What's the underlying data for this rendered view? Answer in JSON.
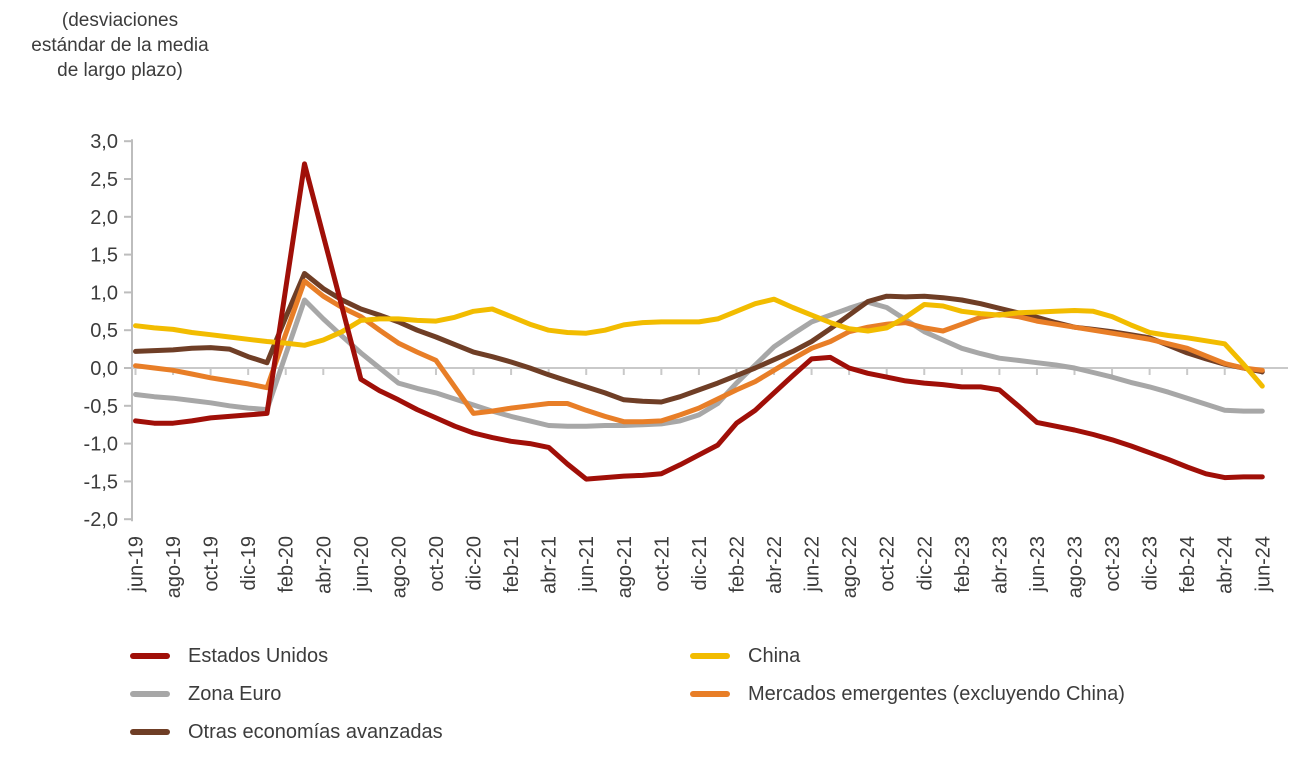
{
  "header_note": {
    "text": "(desviaciones estándar de la media de largo plazo)",
    "lines": [
      "(desviaciones",
      "estándar de la media",
      "de largo plazo)"
    ]
  },
  "chart_data": {
    "type": "line",
    "title": "",
    "xlabel": "",
    "ylabel": "(desviaciones estándar de la media de largo plazo)",
    "ylim": [
      -2.0,
      3.0
    ],
    "grid": "zero-line only",
    "legend_position": "bottom, two columns",
    "x_axis": {
      "unit": "monthly from jun-19 to jun-24, labels every 2 months",
      "tick_labels": [
        "jun-19",
        "ago-19",
        "oct-19",
        "dic-19",
        "feb-20",
        "abr-20",
        "jun-20",
        "ago-20",
        "oct-20",
        "dic-20",
        "feb-21",
        "abr-21",
        "jun-21",
        "ago-21",
        "oct-21",
        "dic-21",
        "feb-22",
        "abr-22",
        "jun-22",
        "ago-22",
        "oct-22",
        "dic-22",
        "feb-23",
        "abr-23",
        "jun-23",
        "ago-23",
        "oct-23",
        "dic-23",
        "feb-24",
        "abr-24",
        "jun-24"
      ],
      "points_per_tick": 2
    },
    "y_axis": {
      "ticks": [
        {
          "value": 3.0,
          "label": "3,0"
        },
        {
          "value": 2.5,
          "label": "2,5"
        },
        {
          "value": 2.0,
          "label": "2,0"
        },
        {
          "value": 1.5,
          "label": "1,5"
        },
        {
          "value": 1.0,
          "label": "1,0"
        },
        {
          "value": 0.5,
          "label": "0,5"
        },
        {
          "value": 0.0,
          "label": "0,0"
        },
        {
          "value": -0.5,
          "label": "-0,5"
        },
        {
          "value": -1.0,
          "label": "-1,0"
        },
        {
          "value": -1.5,
          "label": "-1,5"
        },
        {
          "value": -2.0,
          "label": "-2,0"
        }
      ]
    },
    "series": [
      {
        "name": "Estados Unidos",
        "color": "#A00F08",
        "values": [
          -0.7,
          -0.73,
          -0.73,
          -0.7,
          -0.66,
          -0.64,
          -0.62,
          -0.6,
          1.05,
          2.7,
          1.75,
          0.8,
          -0.15,
          -0.3,
          -0.42,
          -0.55,
          -0.66,
          -0.77,
          -0.86,
          -0.92,
          -0.97,
          -1.0,
          -1.05,
          -1.27,
          -1.47,
          -1.45,
          -1.43,
          -1.42,
          -1.4,
          -1.28,
          -1.15,
          -1.02,
          -0.73,
          -0.56,
          -0.33,
          -0.1,
          0.12,
          0.14,
          0.0,
          -0.07,
          -0.12,
          -0.17,
          -0.2,
          -0.22,
          -0.25,
          -0.25,
          -0.29,
          -0.5,
          -0.72,
          -0.77,
          -0.82,
          -0.88,
          -0.95,
          -1.03,
          -1.12,
          -1.21,
          -1.31,
          -1.4,
          -1.45,
          -1.44,
          -1.44
        ]
      },
      {
        "name": "Zona Euro",
        "color": "#A7A7A7",
        "values": [
          -0.35,
          -0.38,
          -0.4,
          -0.43,
          -0.46,
          -0.5,
          -0.53,
          -0.55,
          0.18,
          0.9,
          0.65,
          0.42,
          0.2,
          0.0,
          -0.2,
          -0.27,
          -0.33,
          -0.41,
          -0.49,
          -0.57,
          -0.64,
          -0.7,
          -0.76,
          -0.77,
          -0.77,
          -0.76,
          -0.76,
          -0.75,
          -0.74,
          -0.7,
          -0.62,
          -0.47,
          -0.2,
          0.04,
          0.28,
          0.45,
          0.61,
          0.7,
          0.79,
          0.87,
          0.8,
          0.64,
          0.48,
          0.37,
          0.26,
          0.19,
          0.13,
          0.1,
          0.07,
          0.04,
          0.0,
          -0.06,
          -0.12,
          -0.19,
          -0.25,
          -0.32,
          -0.4,
          -0.48,
          -0.56,
          -0.57,
          -0.57
        ]
      },
      {
        "name": "Otras economías avanzadas",
        "color": "#6F3E26",
        "values": [
          0.22,
          0.23,
          0.24,
          0.26,
          0.27,
          0.25,
          0.15,
          0.07,
          0.67,
          1.25,
          1.05,
          0.9,
          0.78,
          0.7,
          0.61,
          0.5,
          0.41,
          0.31,
          0.21,
          0.15,
          0.08,
          0.0,
          -0.09,
          -0.17,
          -0.25,
          -0.33,
          -0.42,
          -0.44,
          -0.45,
          -0.38,
          -0.29,
          -0.2,
          -0.1,
          0.0,
          0.11,
          0.22,
          0.35,
          0.52,
          0.7,
          0.88,
          0.95,
          0.94,
          0.95,
          0.93,
          0.9,
          0.85,
          0.79,
          0.73,
          0.67,
          0.6,
          0.54,
          0.51,
          0.48,
          0.44,
          0.4,
          0.3,
          0.2,
          0.12,
          0.05,
          0.0,
          -0.05
        ]
      },
      {
        "name": "China",
        "color": "#F2BC00",
        "values": [
          0.56,
          0.53,
          0.51,
          0.47,
          0.44,
          0.41,
          0.38,
          0.35,
          0.33,
          0.3,
          0.37,
          0.48,
          0.63,
          0.65,
          0.65,
          0.63,
          0.62,
          0.67,
          0.75,
          0.78,
          0.68,
          0.58,
          0.5,
          0.47,
          0.46,
          0.5,
          0.57,
          0.6,
          0.61,
          0.61,
          0.61,
          0.65,
          0.75,
          0.85,
          0.91,
          0.8,
          0.7,
          0.6,
          0.52,
          0.49,
          0.53,
          0.67,
          0.84,
          0.82,
          0.75,
          0.72,
          0.7,
          0.73,
          0.74,
          0.75,
          0.76,
          0.75,
          0.68,
          0.57,
          0.47,
          0.43,
          0.4,
          0.36,
          0.32,
          0.05,
          -0.24
        ]
      },
      {
        "name": "Mercados emergentes (excluyendo China)",
        "color": "#E87E27",
        "values": [
          0.03,
          0.0,
          -0.03,
          -0.08,
          -0.13,
          -0.17,
          -0.21,
          -0.26,
          0.45,
          1.15,
          0.95,
          0.8,
          0.68,
          0.5,
          0.33,
          0.21,
          0.1,
          -0.25,
          -0.6,
          -0.57,
          -0.53,
          -0.5,
          -0.47,
          -0.47,
          -0.56,
          -0.64,
          -0.71,
          -0.71,
          -0.7,
          -0.62,
          -0.53,
          -0.41,
          -0.29,
          -0.18,
          -0.03,
          0.12,
          0.26,
          0.35,
          0.48,
          0.54,
          0.58,
          0.6,
          0.53,
          0.49,
          0.58,
          0.67,
          0.71,
          0.68,
          0.62,
          0.58,
          0.54,
          0.5,
          0.46,
          0.42,
          0.38,
          0.32,
          0.26,
          0.16,
          0.06,
          0.0,
          -0.03
        ]
      }
    ],
    "style": {
      "axis_color": "#BDBDBD",
      "zero_line_color": "#C9C9C9",
      "tick_text_color": "#3C3C3C",
      "line_width": 5
    }
  }
}
